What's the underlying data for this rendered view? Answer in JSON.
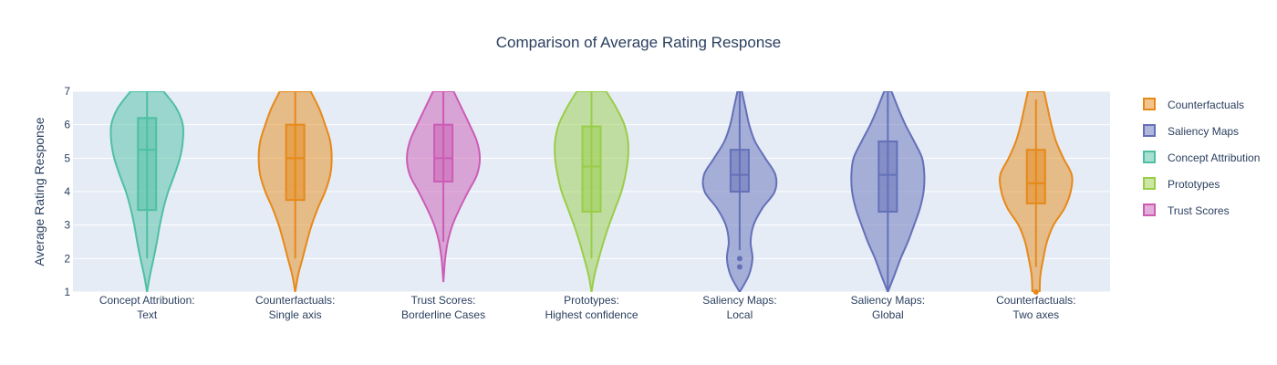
{
  "chart_data": {
    "type": "violin",
    "title": "Comparison of Average Rating Response",
    "ylabel": "Average Rating Response",
    "ylim": [
      1,
      7
    ],
    "yticks": [
      1,
      2,
      3,
      4,
      5,
      6,
      7
    ],
    "grid": true,
    "legend_position": "right",
    "legend": [
      {
        "name": "Counterfactuals",
        "color": "#e6891a"
      },
      {
        "name": "Saliency Maps",
        "color": "#6470b8"
      },
      {
        "name": "Concept Attribution",
        "color": "#4fbfa3"
      },
      {
        "name": "Prototypes",
        "color": "#9acd4a"
      },
      {
        "name": "Trust Scores",
        "color": "#cc5cb4"
      }
    ],
    "violins": [
      {
        "category": [
          "Concept Attribution:",
          "Text"
        ],
        "series": "Concept Attribution",
        "color": "#4fbfa3",
        "box": {
          "q1": 3.45,
          "median": 5.25,
          "q3": 6.2,
          "whisker_low": 2.0,
          "whisker_high": 7.0
        },
        "outliers": [],
        "density": [
          [
            1.0,
            0.0
          ],
          [
            1.5,
            0.08
          ],
          [
            2.0,
            0.18
          ],
          [
            2.5,
            0.27
          ],
          [
            3.0,
            0.35
          ],
          [
            3.5,
            0.45
          ],
          [
            4.0,
            0.58
          ],
          [
            4.5,
            0.75
          ],
          [
            5.0,
            0.9
          ],
          [
            5.5,
            0.98
          ],
          [
            6.0,
            0.98
          ],
          [
            6.5,
            0.8
          ],
          [
            7.0,
            0.45
          ]
        ]
      },
      {
        "category": [
          "Counterfactuals:",
          "Single axis"
        ],
        "series": "Counterfactuals",
        "color": "#e6891a",
        "box": {
          "q1": 3.75,
          "median": 5.0,
          "q3": 6.0,
          "whisker_low": 2.0,
          "whisker_high": 7.0
        },
        "outliers": [],
        "density": [
          [
            1.0,
            0.0
          ],
          [
            1.5,
            0.08
          ],
          [
            2.0,
            0.2
          ],
          [
            2.5,
            0.32
          ],
          [
            3.0,
            0.45
          ],
          [
            3.5,
            0.62
          ],
          [
            4.0,
            0.82
          ],
          [
            4.5,
            0.96
          ],
          [
            5.0,
            1.0
          ],
          [
            5.5,
            0.96
          ],
          [
            6.0,
            0.82
          ],
          [
            6.5,
            0.65
          ],
          [
            7.0,
            0.42
          ]
        ]
      },
      {
        "category": [
          "Trust Scores:",
          "Borderline Cases"
        ],
        "series": "Trust Scores",
        "color": "#cc5cb4",
        "box": {
          "q1": 4.3,
          "median": 5.0,
          "q3": 6.0,
          "whisker_low": 2.5,
          "whisker_high": 7.0
        },
        "outliers": [],
        "density": [
          [
            1.3,
            0.0
          ],
          [
            1.6,
            0.02
          ],
          [
            2.0,
            0.05
          ],
          [
            2.5,
            0.12
          ],
          [
            3.0,
            0.25
          ],
          [
            3.5,
            0.45
          ],
          [
            4.0,
            0.68
          ],
          [
            4.5,
            0.92
          ],
          [
            5.0,
            1.0
          ],
          [
            5.5,
            0.92
          ],
          [
            6.0,
            0.72
          ],
          [
            6.5,
            0.5
          ],
          [
            7.0,
            0.28
          ]
        ]
      },
      {
        "category": [
          "Prototypes:",
          "Highest confidence"
        ],
        "series": "Prototypes",
        "color": "#9acd4a",
        "box": {
          "q1": 3.4,
          "median": 4.75,
          "q3": 5.95,
          "whisker_low": 2.0,
          "whisker_high": 7.0
        },
        "outliers": [],
        "density": [
          [
            1.0,
            0.0
          ],
          [
            1.5,
            0.08
          ],
          [
            2.0,
            0.2
          ],
          [
            2.5,
            0.33
          ],
          [
            3.0,
            0.48
          ],
          [
            3.5,
            0.65
          ],
          [
            4.0,
            0.82
          ],
          [
            4.5,
            0.93
          ],
          [
            5.0,
            1.0
          ],
          [
            5.5,
            1.0
          ],
          [
            6.0,
            0.9
          ],
          [
            6.5,
            0.68
          ],
          [
            7.0,
            0.4
          ]
        ]
      },
      {
        "category": [
          "Saliency Maps:",
          "Local"
        ],
        "series": "Saliency Maps",
        "color": "#6470b8",
        "box": {
          "q1": 4.0,
          "median": 4.5,
          "q3": 5.25,
          "whisker_low": 2.25,
          "whisker_high": 7.0
        },
        "outliers": [
          2.0,
          1.75
        ],
        "density": [
          [
            1.0,
            0.0
          ],
          [
            1.5,
            0.25
          ],
          [
            2.0,
            0.35
          ],
          [
            2.5,
            0.3
          ],
          [
            3.0,
            0.38
          ],
          [
            3.5,
            0.62
          ],
          [
            4.0,
            0.96
          ],
          [
            4.5,
            0.98
          ],
          [
            5.0,
            0.7
          ],
          [
            5.5,
            0.42
          ],
          [
            6.0,
            0.26
          ],
          [
            6.5,
            0.16
          ],
          [
            7.0,
            0.06
          ]
        ]
      },
      {
        "category": [
          "Saliency Maps:",
          "Global"
        ],
        "series": "Saliency Maps",
        "color": "#6470b8",
        "box": {
          "q1": 3.4,
          "median": 4.5,
          "q3": 5.5,
          "whisker_low": 1.0,
          "whisker_high": 7.0
        },
        "outliers": [],
        "density": [
          [
            1.0,
            0.0
          ],
          [
            1.5,
            0.18
          ],
          [
            2.0,
            0.35
          ],
          [
            2.5,
            0.55
          ],
          [
            3.0,
            0.72
          ],
          [
            3.5,
            0.88
          ],
          [
            4.0,
            0.98
          ],
          [
            4.5,
            1.0
          ],
          [
            5.0,
            0.94
          ],
          [
            5.5,
            0.72
          ],
          [
            6.0,
            0.48
          ],
          [
            6.5,
            0.28
          ],
          [
            7.0,
            0.1
          ]
        ]
      },
      {
        "category": [
          "Counterfactuals:",
          "Two axes"
        ],
        "series": "Counterfactuals",
        "color": "#e6891a",
        "box": {
          "q1": 3.65,
          "median": 4.25,
          "q3": 5.25,
          "whisker_low": 1.75,
          "whisker_high": 6.75
        },
        "outliers": [
          1.0
        ],
        "density": [
          [
            1.0,
            0.1
          ],
          [
            1.5,
            0.12
          ],
          [
            2.0,
            0.2
          ],
          [
            2.5,
            0.3
          ],
          [
            3.0,
            0.48
          ],
          [
            3.5,
            0.78
          ],
          [
            4.0,
            0.95
          ],
          [
            4.5,
            0.98
          ],
          [
            5.0,
            0.75
          ],
          [
            5.5,
            0.55
          ],
          [
            6.0,
            0.42
          ],
          [
            6.5,
            0.32
          ],
          [
            7.0,
            0.22
          ]
        ]
      }
    ]
  }
}
